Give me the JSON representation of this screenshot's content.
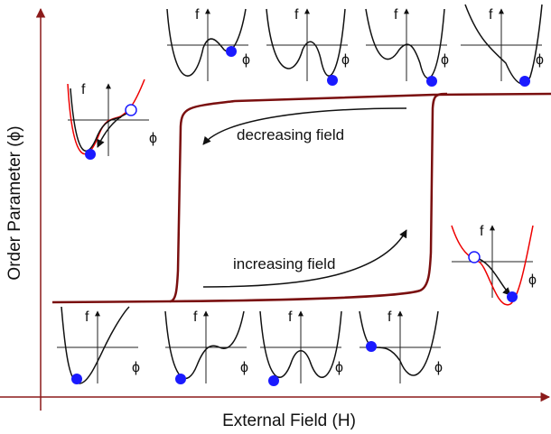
{
  "axes": {
    "y_label": "Order Parameter (ϕ)",
    "x_label": "External Field (H)"
  },
  "annotations": {
    "decreasing": "decreasing field",
    "increasing": "increasing field"
  },
  "insets": [
    {
      "f": "f",
      "phi": "ϕ"
    },
    {
      "f": "f",
      "phi": "ϕ"
    },
    {
      "f": "f",
      "phi": "ϕ"
    },
    {
      "f": "f",
      "phi": "ϕ"
    },
    {
      "f": "f",
      "phi": "ϕ"
    },
    {
      "f": "f",
      "phi": "ϕ"
    },
    {
      "f": "f",
      "phi": "ϕ"
    },
    {
      "f": "f",
      "phi": "ϕ"
    },
    {
      "f": "f",
      "phi": "ϕ"
    },
    {
      "f": "f",
      "phi": "ϕ"
    }
  ]
}
